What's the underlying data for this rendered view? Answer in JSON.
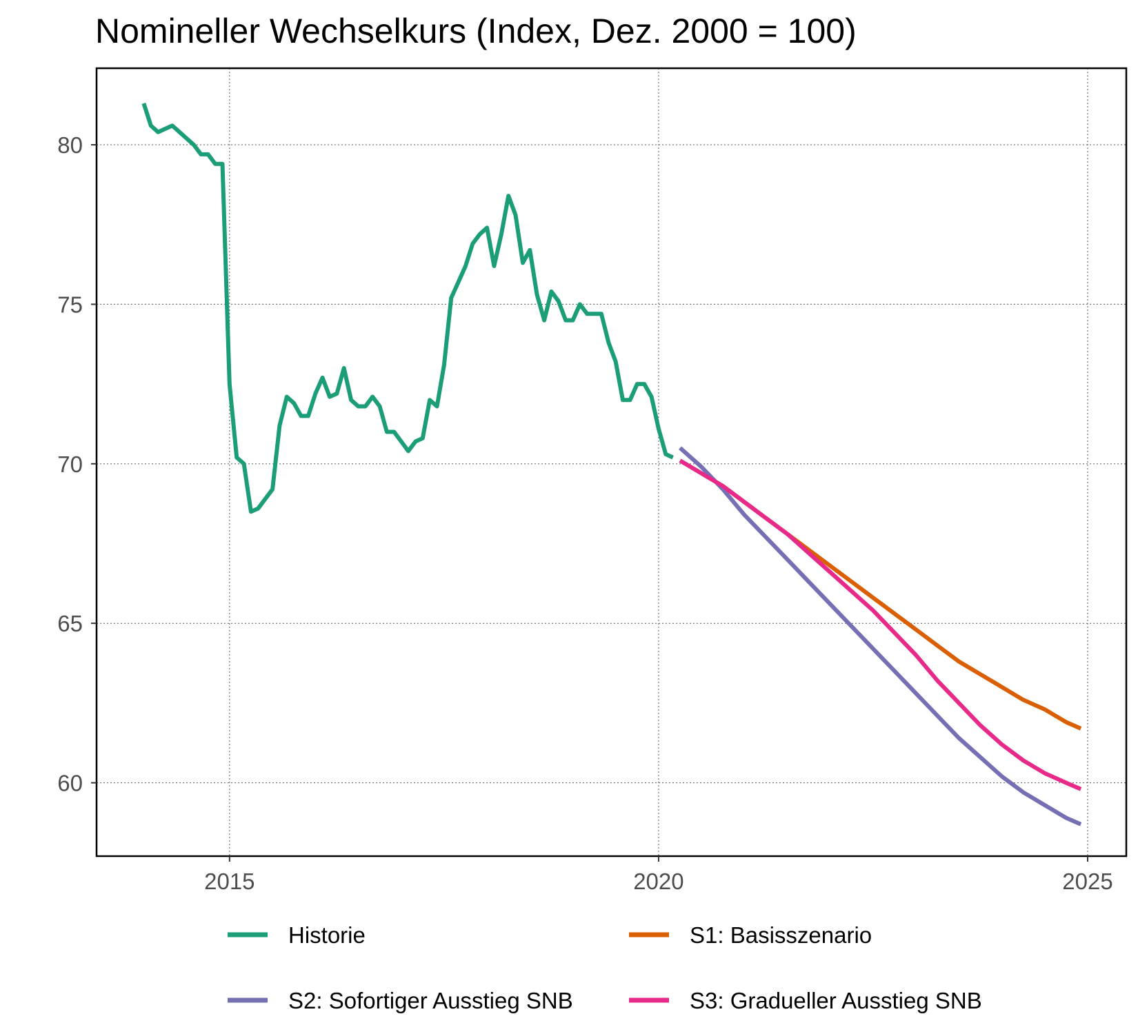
{
  "chart_data": {
    "type": "line",
    "title": "Nomineller Wechselkurs (Index, Dez. 2000 = 100)",
    "xlabel": "",
    "ylabel": "",
    "xlim": [
      2013.45,
      2025.45
    ],
    "ylim": [
      57.7,
      82.4
    ],
    "x_ticks": [
      2015,
      2020,
      2025
    ],
    "x_tick_labels": [
      "2015",
      "2020",
      "2025"
    ],
    "y_ticks": [
      60,
      65,
      70,
      75,
      80
    ],
    "y_tick_labels": [
      "60",
      "65",
      "70",
      "75",
      "80"
    ],
    "grid": true,
    "legend_position": "bottom",
    "series": [
      {
        "name": "Historie",
        "color": "#1b9e77",
        "x": [
          2014.0,
          2014.083,
          2014.167,
          2014.25,
          2014.333,
          2014.417,
          2014.5,
          2014.583,
          2014.667,
          2014.75,
          2014.833,
          2014.917,
          2015.0,
          2015.083,
          2015.167,
          2015.25,
          2015.333,
          2015.417,
          2015.5,
          2015.583,
          2015.667,
          2015.75,
          2015.833,
          2015.917,
          2016.0,
          2016.083,
          2016.167,
          2016.25,
          2016.333,
          2016.417,
          2016.5,
          2016.583,
          2016.667,
          2016.75,
          2016.833,
          2016.917,
          2017.0,
          2017.083,
          2017.167,
          2017.25,
          2017.333,
          2017.417,
          2017.5,
          2017.583,
          2017.667,
          2017.75,
          2017.833,
          2017.917,
          2018.0,
          2018.083,
          2018.167,
          2018.25,
          2018.333,
          2018.417,
          2018.5,
          2018.583,
          2018.667,
          2018.75,
          2018.833,
          2018.917,
          2019.0,
          2019.083,
          2019.167,
          2019.25,
          2019.333,
          2019.417,
          2019.5,
          2019.583,
          2019.667,
          2019.75,
          2019.833,
          2019.917,
          2020.0,
          2020.083,
          2020.167
        ],
        "y": [
          81.3,
          80.6,
          80.4,
          80.5,
          80.6,
          80.4,
          80.2,
          80.0,
          79.7,
          79.7,
          79.4,
          79.4,
          72.5,
          70.2,
          70.0,
          68.5,
          68.6,
          68.9,
          69.2,
          71.2,
          72.1,
          71.9,
          71.5,
          71.5,
          72.2,
          72.7,
          72.1,
          72.2,
          73.0,
          72.0,
          71.8,
          71.8,
          72.1,
          71.8,
          71.0,
          71.0,
          70.7,
          70.4,
          70.7,
          70.8,
          72.0,
          71.8,
          73.1,
          75.2,
          75.7,
          76.2,
          76.9,
          77.2,
          77.4,
          76.2,
          77.2,
          78.4,
          77.8,
          76.3,
          76.7,
          75.3,
          74.5,
          75.4,
          75.1,
          74.5,
          74.5,
          75.0,
          74.7,
          74.7,
          74.7,
          73.8,
          73.2,
          72.0,
          72.0,
          72.5,
          72.5,
          72.1,
          71.1,
          70.3,
          70.2
        ]
      },
      {
        "name": "S1: Basisszenario",
        "color": "#d95f02",
        "x": [
          2020.25,
          2020.5,
          2020.75,
          2021.0,
          2021.25,
          2021.5,
          2021.75,
          2022.0,
          2022.25,
          2022.5,
          2022.75,
          2023.0,
          2023.25,
          2023.5,
          2023.75,
          2024.0,
          2024.25,
          2024.5,
          2024.75,
          2024.92
        ],
        "y": [
          70.1,
          69.7,
          69.3,
          68.8,
          68.3,
          67.8,
          67.3,
          66.8,
          66.3,
          65.8,
          65.3,
          64.8,
          64.3,
          63.8,
          63.4,
          63.0,
          62.6,
          62.3,
          61.9,
          61.7
        ]
      },
      {
        "name": "S2: Sofortiger Ausstieg SNB",
        "color": "#7570b3",
        "x": [
          2020.25,
          2020.5,
          2020.75,
          2021.0,
          2021.25,
          2021.5,
          2021.75,
          2022.0,
          2022.25,
          2022.5,
          2022.75,
          2023.0,
          2023.25,
          2023.5,
          2023.75,
          2024.0,
          2024.25,
          2024.5,
          2024.75,
          2024.92
        ],
        "y": [
          70.5,
          69.9,
          69.2,
          68.4,
          67.7,
          67.0,
          66.3,
          65.6,
          64.9,
          64.2,
          63.5,
          62.8,
          62.1,
          61.4,
          60.8,
          60.2,
          59.7,
          59.3,
          58.9,
          58.7
        ]
      },
      {
        "name": "S3: Gradueller Ausstieg SNB",
        "color": "#e7298a",
        "x": [
          2020.25,
          2020.5,
          2020.75,
          2021.0,
          2021.25,
          2021.5,
          2021.75,
          2022.0,
          2022.25,
          2022.5,
          2022.75,
          2023.0,
          2023.25,
          2023.5,
          2023.75,
          2024.0,
          2024.25,
          2024.5,
          2024.75,
          2024.92
        ],
        "y": [
          70.1,
          69.7,
          69.3,
          68.8,
          68.3,
          67.8,
          67.2,
          66.6,
          66.0,
          65.4,
          64.7,
          64.0,
          63.2,
          62.5,
          61.8,
          61.2,
          60.7,
          60.3,
          60.0,
          59.8
        ]
      }
    ]
  }
}
